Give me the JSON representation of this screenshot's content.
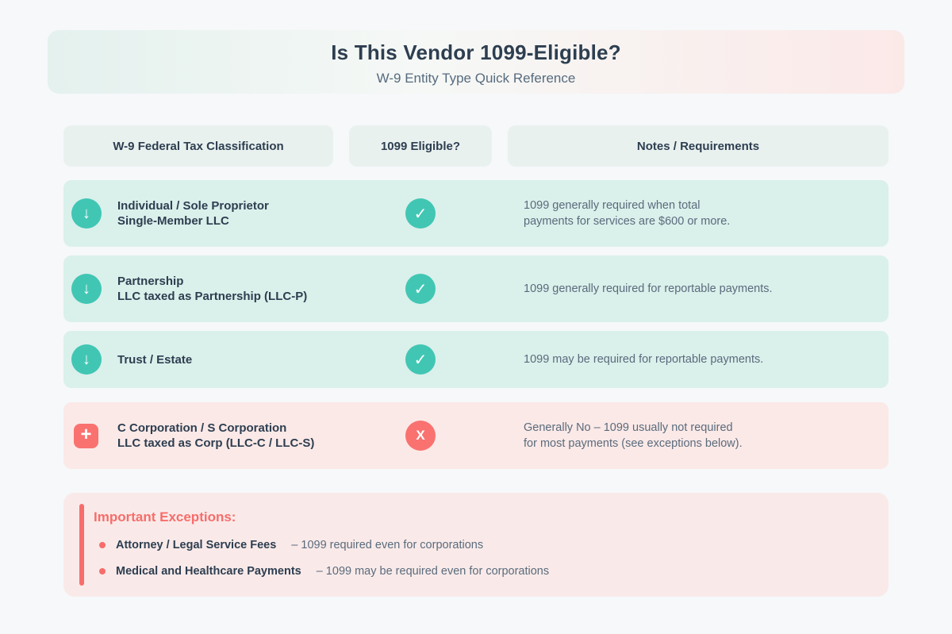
{
  "header": {
    "title": "Is This Vendor 1099-Eligible?",
    "subtitle": "W-9 Entity Type Quick Reference"
  },
  "columns": {
    "classification": "W-9 Federal Tax Classification",
    "eligible": "1099 Eligible?",
    "notes": "Notes / Requirements"
  },
  "rows": [
    {
      "icon_name": "down-arrow-icon",
      "icon_glyph": "↓",
      "icon_style": "circle",
      "title_line1": "Individual / Sole Proprietor",
      "title_line2": "Single-Member LLC",
      "status": "yes",
      "mark": "✓",
      "note_line1": "1099 generally required when total",
      "note_line2": "payments for services are $600 or more."
    },
    {
      "icon_name": "down-arrow-icon",
      "icon_glyph": "↓",
      "icon_style": "circle",
      "title_line1": "Partnership",
      "title_line2": "LLC taxed as Partnership (LLC-P)",
      "status": "yes",
      "mark": "✓",
      "note_line1": "1099 generally required for reportable payments.",
      "note_line2": ""
    },
    {
      "icon_name": "down-arrow-icon",
      "icon_glyph": "↓",
      "icon_style": "circle",
      "title_line1": "Trust / Estate",
      "title_line2": "",
      "status": "yes",
      "mark": "✓",
      "note_line1": "1099 may be required for reportable payments.",
      "note_line2": ""
    },
    {
      "icon_name": "plus-icon",
      "icon_glyph": "+",
      "icon_style": "square",
      "title_line1": "C Corporation / S Corporation",
      "title_line2": "LLC taxed as Corp (LLC-C / LLC-S)",
      "status": "no",
      "mark": "X",
      "note_line1": "Generally No – 1099 usually not required",
      "note_line2": "for most payments (see exceptions below)."
    }
  ],
  "exceptions": {
    "title": "Important Exceptions:",
    "items": [
      {
        "label": "Attorney / Legal Service Fees",
        "detail": "– 1099 required even for corporations"
      },
      {
        "label": "Medical and Healthcare Payments",
        "detail": "– 1099 may be required even for corporations"
      }
    ]
  },
  "colors": {
    "teal_accent": "#41c6b4",
    "coral_accent": "#f97270",
    "teal_row_bg": "#daf0eb",
    "pink_row_bg": "#fbe9e7",
    "navy_text": "#2d3e50",
    "gray_text": "#5a6b7c",
    "page_bg": "#f6f8fa"
  }
}
